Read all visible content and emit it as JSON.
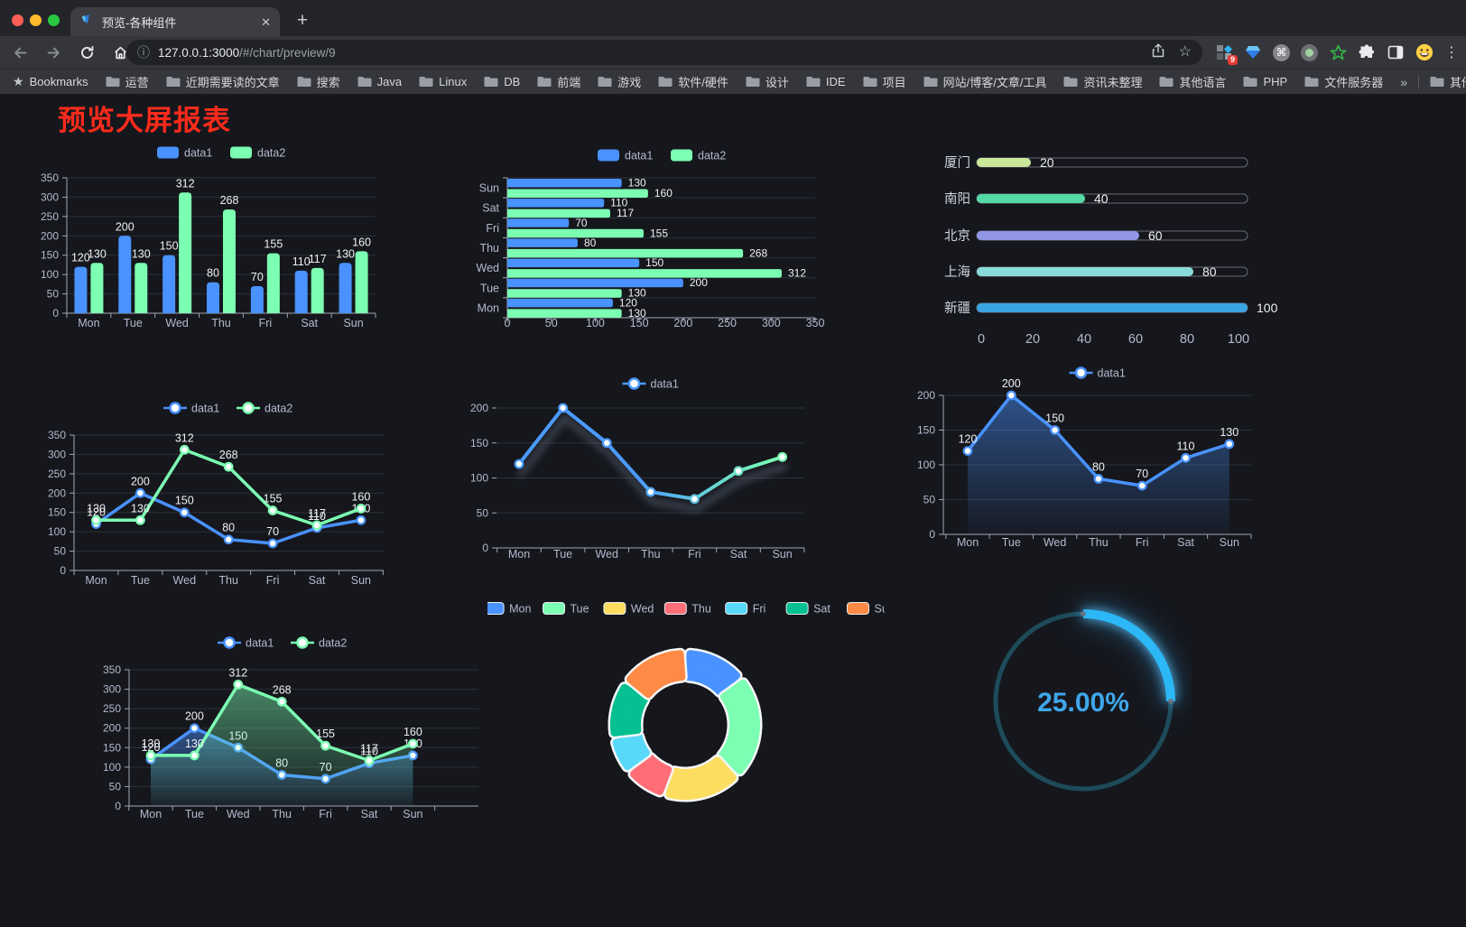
{
  "browser": {
    "tab_title": "预览-各种组件",
    "url_host": "127.0.0.1:3000",
    "url_path": "/#/chart/preview/9",
    "bookmarks_label": "Bookmarks",
    "bookmark_folders": [
      "运营",
      "近期需要读的文章",
      "搜索",
      "Java",
      "Linux",
      "DB",
      "前端",
      "游戏",
      "软件/硬件",
      "设计",
      "IDE",
      "项目",
      "网站/博客/文章/工具",
      "资讯未整理",
      "其他语言",
      "PHP",
      "文件服务器"
    ],
    "bookmarks_overflow": "»",
    "other_bookmarks": "其他书签",
    "extension_badge": "9",
    "traffic_lights": [
      "#ff5f57",
      "#febc2e",
      "#28c840"
    ],
    "icons": {
      "info": "ⓘ",
      "star_outline": "☆",
      "bookmarks_star": "★",
      "new_tab": "+",
      "close_tab": "✕",
      "menu_dots": "⋮",
      "command": "⌘"
    }
  },
  "page": {
    "title": "预览大屏报表",
    "title_color": "#fb2b1b",
    "background": "#15171d",
    "text_color": "#b9b8ce",
    "palette": [
      "#4992ff",
      "#7cffb2",
      "#fddd60",
      "#ff6e76",
      "#58d9f9",
      "#05c091",
      "#ff8a45"
    ]
  },
  "chart_data": [
    {
      "type": "bar",
      "categories": [
        "Mon",
        "Tue",
        "Wed",
        "Thu",
        "Fri",
        "Sat",
        "Sun"
      ],
      "series": [
        {
          "name": "data1",
          "color": "#4992ff",
          "values": [
            120,
            200,
            150,
            80,
            70,
            110,
            130
          ]
        },
        {
          "name": "data2",
          "color": "#7cffb2",
          "values": [
            130,
            130,
            312,
            268,
            155,
            117,
            160
          ]
        }
      ],
      "ylim": [
        0,
        350
      ],
      "ystep": 50,
      "legend_position": "top",
      "grid": true,
      "labels": true
    },
    {
      "type": "bar-horizontal",
      "categories": [
        "Mon",
        "Tue",
        "Wed",
        "Thu",
        "Fri",
        "Sat",
        "Sun"
      ],
      "series": [
        {
          "name": "data1",
          "color": "#4992ff",
          "values": [
            120,
            200,
            150,
            80,
            70,
            110,
            130
          ]
        },
        {
          "name": "data2",
          "color": "#7cffb2",
          "values": [
            130,
            130,
            312,
            268,
            155,
            117,
            160
          ]
        }
      ],
      "xlim": [
        0,
        350
      ],
      "xstep": 50,
      "legend_position": "top",
      "labels": true
    },
    {
      "type": "progress",
      "rows": [
        {
          "label": "厦门",
          "value": 20,
          "color": "#cbe79a"
        },
        {
          "label": "南阳",
          "value": 40,
          "color": "#54d8a5"
        },
        {
          "label": "北京",
          "value": 60,
          "color": "#9196e6"
        },
        {
          "label": "上海",
          "value": 80,
          "color": "#89dcd9"
        },
        {
          "label": "新疆",
          "value": 100,
          "color": "#3aa4e3"
        }
      ],
      "xlim": [
        0,
        100
      ],
      "xstep": 20
    },
    {
      "type": "line",
      "categories": [
        "Mon",
        "Tue",
        "Wed",
        "Thu",
        "Fri",
        "Sat",
        "Sun"
      ],
      "series": [
        {
          "name": "data1",
          "color": "#4992ff",
          "values": [
            120,
            200,
            150,
            80,
            70,
            110,
            130
          ]
        },
        {
          "name": "data2",
          "color": "#7cffb2",
          "values": [
            130,
            130,
            312,
            268,
            155,
            117,
            160
          ]
        }
      ],
      "ylim": [
        0,
        350
      ],
      "ystep": 50,
      "legend_position": "top",
      "labels": true
    },
    {
      "type": "line",
      "categories": [
        "Mon",
        "Tue",
        "Wed",
        "Thu",
        "Fri",
        "Sat",
        "Sun"
      ],
      "series": [
        {
          "name": "data1",
          "color": "#4a9bff",
          "color_end": "#7cffb2",
          "values": [
            120,
            200,
            150,
            80,
            70,
            110,
            130
          ]
        }
      ],
      "ylim": [
        0,
        200
      ],
      "ystep": 50,
      "legend_position": "top",
      "labels": false,
      "gradient": true,
      "shadow": true
    },
    {
      "type": "area",
      "categories": [
        "Mon",
        "Tue",
        "Wed",
        "Thu",
        "Fri",
        "Sat",
        "Sun"
      ],
      "series": [
        {
          "name": "data1",
          "color": "#4992ff",
          "values": [
            120,
            200,
            150,
            80,
            70,
            110,
            130
          ]
        }
      ],
      "ylim": [
        0,
        200
      ],
      "ystep": 50,
      "legend_position": "top",
      "labels": true
    },
    {
      "type": "area",
      "categories": [
        "Mon",
        "Tue",
        "Wed",
        "Thu",
        "Fri",
        "Sat",
        "Sun"
      ],
      "series": [
        {
          "name": "data1",
          "color": "#4992ff",
          "values": [
            120,
            200,
            150,
            80,
            70,
            110,
            130
          ]
        },
        {
          "name": "data2",
          "color": "#7cffb2",
          "values": [
            130,
            130,
            312,
            268,
            155,
            117,
            160
          ]
        }
      ],
      "ylim": [
        0,
        350
      ],
      "ystep": 50,
      "legend_position": "top",
      "labels": true
    },
    {
      "type": "pie",
      "donut": true,
      "legend_position": "top",
      "items": [
        {
          "label": "Mon",
          "value": 120,
          "color": "#4992ff"
        },
        {
          "label": "Tue",
          "value": 200,
          "color": "#7cffb2"
        },
        {
          "label": "Wed",
          "value": 150,
          "color": "#fddd60"
        },
        {
          "label": "Thu",
          "value": 80,
          "color": "#ff6e76"
        },
        {
          "label": "Fri",
          "value": 70,
          "color": "#58d9f9"
        },
        {
          "label": "Sat",
          "value": 110,
          "color": "#05c091"
        },
        {
          "label": "Sun",
          "value": 130,
          "color": "#ff8a45"
        }
      ]
    },
    {
      "type": "gauge",
      "value": 25,
      "label": "25.00%",
      "color": "#2cb8f7",
      "track_color": "#1d4b59",
      "text_color": "#3fa6ea"
    }
  ]
}
